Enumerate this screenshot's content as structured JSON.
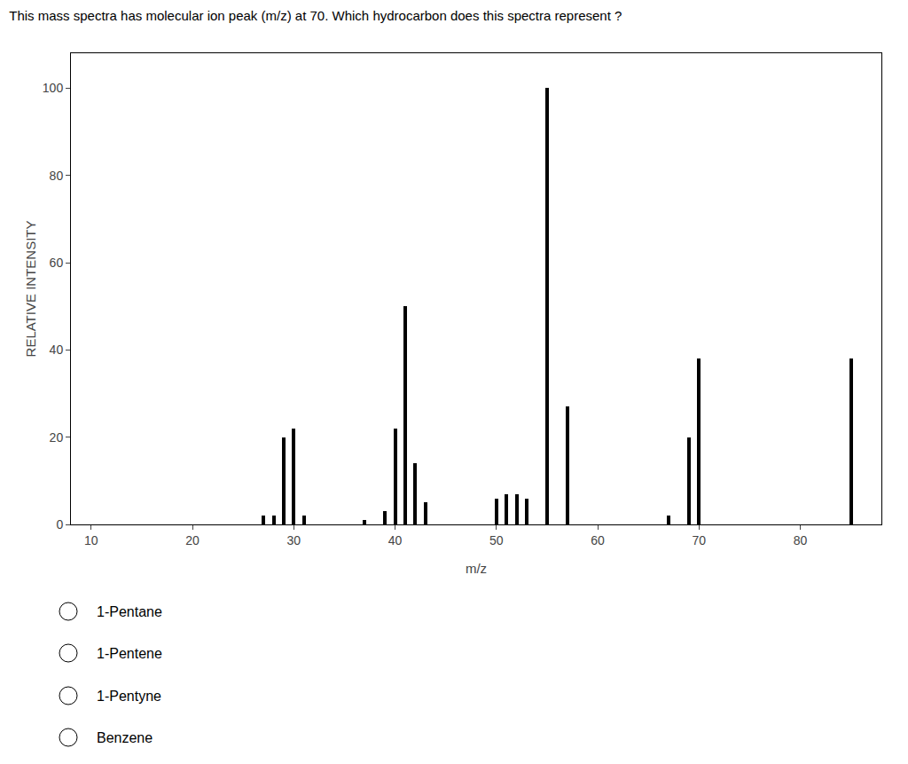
{
  "chart_data": {
    "type": "bar",
    "title": "This mass spectra has molecular ion peak (m/z) at 70. Which hydrocarbon does this spectra represent ?",
    "xlabel": "m/z",
    "ylabel": "RELATIVE INTENSITY",
    "x": [
      27,
      28,
      29,
      30,
      31,
      37,
      39,
      40,
      41,
      42,
      43,
      50,
      51,
      52,
      53,
      55,
      57,
      67,
      69,
      70,
      85
    ],
    "values": [
      2,
      2,
      20,
      22,
      2,
      1,
      3,
      22,
      50,
      14,
      5,
      6,
      7,
      7,
      6,
      100,
      27,
      2,
      20,
      38,
      38
    ],
    "color": "#000000",
    "xlim": [
      8,
      88
    ],
    "ylim": [
      0,
      108
    ],
    "xticks": [
      10,
      20,
      30,
      40,
      50,
      60,
      70,
      80
    ],
    "yticks": [
      0,
      20,
      40,
      60,
      80,
      100
    ],
    "grid": false,
    "annotations": [
      "1-Pentane",
      "1-Pentene",
      "1-Pentyne",
      "Benzene"
    ]
  }
}
